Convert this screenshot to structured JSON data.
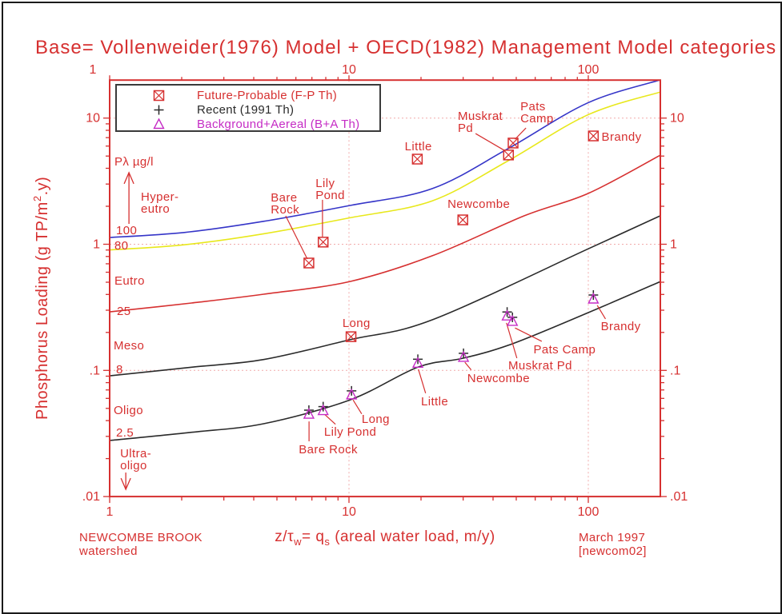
{
  "title": "Base= Vollenweider(1976) Model + OECD(1982) Management Model categories",
  "footer": {
    "left_line1": "NEWCOMBE BROOK",
    "left_line2": "watershed",
    "right_line1": "March 1997",
    "right_line2": "[newcom02]"
  },
  "colors": {
    "red": "#d63030",
    "pink_grid": "#f2aaaa",
    "blue": "#3535c8",
    "yellow": "#e8e81c",
    "magenta": "#c52cc5",
    "dark": "#2a2a2a",
    "legend_border": "#3a3a3a"
  },
  "legend": {
    "rows": [
      {
        "symbol": "crossed-square",
        "label": "Future-Probable (F-P Th)",
        "color": "#d63030"
      },
      {
        "symbol": "plus",
        "label": "Recent (1991 Th)",
        "color": "#2a2a2a"
      },
      {
        "symbol": "triangle",
        "label": "Background+Aereal (B+A Th)",
        "color": "#c52cc5"
      }
    ]
  },
  "x_axis_title_parts": [
    {
      "t": "z/"
    },
    {
      "t": "τ"
    },
    {
      "sub": "w"
    },
    {
      "t": "= q"
    },
    {
      "sub": "s"
    },
    {
      "t": " (areal water load, m/y)"
    }
  ],
  "y_axis_title_parts": [
    {
      "t": "Phosphorus Loading (g TP/m"
    },
    {
      "sup": "2"
    },
    {
      "t": ".y)"
    }
  ],
  "chart_data": {
    "type": "scatter",
    "x_axis": {
      "scale": "log",
      "min": 1,
      "max": 200,
      "ticks": [
        {
          "v": 1,
          "label": "1",
          "top_x": 116
        },
        {
          "v": 10,
          "label": "10"
        },
        {
          "v": 100,
          "label": "100"
        }
      ],
      "gridlines": [
        10,
        100
      ]
    },
    "y_axis": {
      "scale": "log",
      "min": 0.01,
      "max": 20,
      "ticks": [
        {
          "v": 10,
          "label": "10"
        },
        {
          "v": 1,
          "label": "1"
        },
        {
          "v": 0.1,
          "label": ".1"
        },
        {
          "v": 0.01,
          "label": ".01"
        }
      ],
      "gridlines": [
        10,
        1,
        0.1
      ]
    },
    "curves": [
      {
        "name": "hyper-eutro-boundary-100",
        "color": "#3535c8",
        "points": [
          [
            1,
            1.13
          ],
          [
            2.05,
            1.24
          ],
          [
            4.4,
            1.52
          ],
          [
            10.1,
            2.03
          ],
          [
            22.3,
            2.76
          ],
          [
            46,
            5.7
          ],
          [
            99.5,
            13.2
          ],
          [
            200,
            20.1
          ]
        ]
      },
      {
        "name": "eutro-boundary-80",
        "color": "#e8e81c",
        "points": [
          [
            1,
            0.9
          ],
          [
            2.05,
            0.99
          ],
          [
            4.4,
            1.21
          ],
          [
            10.1,
            1.62
          ],
          [
            22.3,
            2.21
          ],
          [
            46,
            4.56
          ],
          [
            99.5,
            10.6
          ],
          [
            200,
            16.1
          ]
        ]
      },
      {
        "name": "meso-boundary-25",
        "color": "#d63030",
        "points": [
          [
            1,
            0.291
          ],
          [
            2.2,
            0.342
          ],
          [
            4.4,
            0.402
          ],
          [
            10.1,
            0.507
          ],
          [
            22.3,
            0.81
          ],
          [
            54,
            1.68
          ],
          [
            100,
            2.53
          ],
          [
            200,
            5.08
          ]
        ]
      },
      {
        "name": "oligo-boundary-8",
        "color": "#2a2a2a",
        "points": [
          [
            1,
            0.0906
          ],
          [
            2.2,
            0.106
          ],
          [
            4.4,
            0.122
          ],
          [
            10.1,
            0.175
          ],
          [
            22.3,
            0.252
          ],
          [
            100,
            0.92
          ],
          [
            200,
            1.68
          ]
        ]
      },
      {
        "name": "ultra-oligo-boundary-2.5",
        "color": "#2a2a2a",
        "points": [
          [
            1,
            0.0278
          ],
          [
            2.2,
            0.0323
          ],
          [
            4.4,
            0.0378
          ],
          [
            10.1,
            0.0584
          ],
          [
            19.4,
            0.106
          ],
          [
            30,
            0.125
          ],
          [
            48,
            0.162
          ],
          [
            100,
            0.287
          ],
          [
            200,
            0.506
          ]
        ]
      }
    ],
    "series": [
      {
        "name": "Future-Probable (F-P Th)",
        "marker": "crossed-square",
        "color": "#d63030",
        "points": [
          {
            "name": "Bare Rock",
            "qs": 6.8,
            "L": 0.71
          },
          {
            "name": "Lily Pond",
            "qs": 7.8,
            "L": 1.04
          },
          {
            "name": "Long",
            "qs": 10.2,
            "L": 0.185
          },
          {
            "name": "Little",
            "qs": 19.3,
            "L": 4.73
          },
          {
            "name": "Newcombe",
            "qs": 29.9,
            "L": 1.56
          },
          {
            "name": "Muskrat Pd",
            "qs": 46.4,
            "L": 5.1
          },
          {
            "name": "Pats Camp",
            "qs": 48.5,
            "L": 6.34
          },
          {
            "name": "Brandy",
            "qs": 105,
            "L": 7.22
          }
        ]
      },
      {
        "name": "Recent (1991 Th)",
        "marker": "plus",
        "color": "#2a2a2a",
        "dy": -5,
        "points": [
          {
            "name": "Bare Rock",
            "qs": 6.8,
            "L": 0.045
          },
          {
            "name": "Lily Pond",
            "qs": 7.8,
            "L": 0.048
          },
          {
            "name": "Long",
            "qs": 10.25,
            "L": 0.064
          },
          {
            "name": "Little",
            "qs": 19.4,
            "L": 0.114
          },
          {
            "name": "Newcombe",
            "qs": 30.1,
            "L": 0.127
          },
          {
            "name": "Muskrat Pd",
            "qs": 45.8,
            "L": 0.27
          },
          {
            "name": "Pats Camp",
            "qs": 48.2,
            "L": 0.245
          },
          {
            "name": "Brandy",
            "qs": 105,
            "L": 0.368
          }
        ]
      },
      {
        "name": "Background+Aereal (B+A Th)",
        "marker": "triangle",
        "color": "#c52cc5",
        "dy": 0,
        "points": [
          {
            "name": "Bare Rock",
            "qs": 6.8,
            "L": 0.045
          },
          {
            "name": "Lily Pond",
            "qs": 7.8,
            "L": 0.048
          },
          {
            "name": "Long",
            "qs": 10.25,
            "L": 0.064
          },
          {
            "name": "Little",
            "qs": 19.4,
            "L": 0.114
          },
          {
            "name": "Newcombe",
            "qs": 30.1,
            "L": 0.127
          },
          {
            "name": "Muskrat Pd",
            "qs": 45.8,
            "L": 0.27
          },
          {
            "name": "Pats Camp",
            "qs": 48.2,
            "L": 0.245
          },
          {
            "name": "Brandy",
            "qs": 105,
            "L": 0.368
          }
        ]
      }
    ],
    "annotations": [
      {
        "text": "Bare\nRock",
        "qs": 4.71,
        "L": 2.18
      },
      {
        "text": "Lily\nPond",
        "qs": 7.25,
        "L": 2.84
      },
      {
        "text": "Little",
        "qs": 17.1,
        "L": 5.56
      },
      {
        "text": "Muskrat\nPd",
        "qs": 28.5,
        "L": 9.68
      },
      {
        "text": "Pats\nCamp",
        "qs": 52.0,
        "L": 11.5
      },
      {
        "text": "Brandy",
        "qs": 113.6,
        "L": 6.62
      },
      {
        "text": "Newcombe",
        "qs": 25.8,
        "L": 1.94
      },
      {
        "text": "Long",
        "qs": 9.39,
        "L": 0.221
      },
      {
        "text": "Long",
        "qs": 11.3,
        "L": 0.0384
      },
      {
        "text": "Lily Pond",
        "qs": 7.87,
        "L": 0.0303
      },
      {
        "text": "Bare Rock",
        "qs": 6.17,
        "L": 0.022
      },
      {
        "text": "Little",
        "qs": 20.0,
        "L": 0.0529
      },
      {
        "text": "Newcombe",
        "qs": 31.2,
        "L": 0.0807
      },
      {
        "text": "Muskrat Pd",
        "qs": 46.3,
        "L": 0.102
      },
      {
        "text": "Pats Camp",
        "qs": 59.0,
        "L": 0.136
      },
      {
        "text": "Brandy",
        "qs": 112.8,
        "L": 0.208
      },
      {
        "text": "Pλ µg/l",
        "qs": 1.047,
        "L": 4.2
      },
      {
        "text": "Hyper-\neutro",
        "qs": 1.35,
        "L": 2.21
      },
      {
        "text": "100",
        "qs": 1.064,
        "L": 1.2
      },
      {
        "text": "80",
        "qs": 1.047,
        "L": 0.908
      },
      {
        "text": "Eutro",
        "qs": 1.047,
        "L": 0.478
      },
      {
        "text": "25",
        "qs": 1.072,
        "L": 0.274
      },
      {
        "text": "Meso",
        "qs": 1.039,
        "L": 0.147
      },
      {
        "text": "8",
        "qs": 1.064,
        "L": 0.0945
      },
      {
        "text": "Oligo",
        "qs": 1.039,
        "L": 0.045
      },
      {
        "text": "2.5",
        "qs": 1.064,
        "L": 0.03
      },
      {
        "text": "Ultra-\noligo",
        "qs": 1.106,
        "L": 0.0205
      }
    ],
    "leaders": [
      [
        5.44,
        1.679,
        6.7,
        0.763
      ],
      [
        7.75,
        2.25,
        7.75,
        1.149
      ],
      [
        33.8,
        7.54,
        44.5,
        5.56
      ],
      [
        54.9,
        8.35,
        49.4,
        6.79
      ],
      [
        11.3,
        0.0452,
        10.4,
        0.0584
      ],
      [
        8.78,
        0.0374,
        7.92,
        0.0447
      ],
      [
        6.81,
        0.0274,
        6.81,
        0.0394
      ],
      [
        20.9,
        0.066,
        19.5,
        0.102
      ],
      [
        32.4,
        0.101,
        30.5,
        0.116
      ],
      [
        50.3,
        0.125,
        45.5,
        0.238
      ],
      [
        63.9,
        0.17,
        49.4,
        0.217
      ],
      [
        118,
        0.256,
        109,
        0.328
      ]
    ],
    "arrows": [
      {
        "qs": 1.204,
        "L_from": 1.45,
        "L_to": 3.7,
        "dir": "up"
      },
      {
        "qs": 1.168,
        "L_from": 0.0155,
        "L_to": 0.0114,
        "dir": "down"
      }
    ]
  }
}
